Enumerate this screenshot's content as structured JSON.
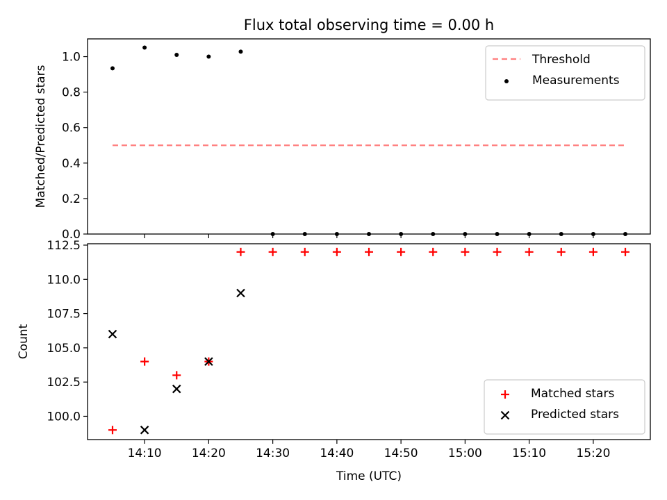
{
  "title": "Flux total observing time = 0.00 h",
  "chart_data": [
    {
      "type": "scatter",
      "ylabel": "Matched/Predicted stars",
      "ylim": [
        0,
        1.1
      ],
      "yticks": [
        "0.0",
        "0.2",
        "0.4",
        "0.6",
        "0.8",
        "1.0"
      ],
      "grid": false,
      "legend_position": "top-right",
      "threshold": {
        "name": "Threshold",
        "value": 0.5,
        "x_start": "14:05",
        "x_end": "15:25",
        "color": "#ff7f7f",
        "style": "dashed"
      },
      "series": [
        {
          "name": "Measurements",
          "marker": "dot",
          "color": "#000000",
          "x": [
            "14:05",
            "14:10",
            "14:15",
            "14:20",
            "14:25",
            "14:30",
            "14:35",
            "14:40",
            "14:45",
            "14:50",
            "14:55",
            "15:00",
            "15:05",
            "15:10",
            "15:15",
            "15:20",
            "15:25"
          ],
          "values": [
            0.934,
            1.051,
            1.01,
            1.0,
            1.028,
            0,
            0,
            0,
            0,
            0,
            0,
            0,
            0,
            0,
            0,
            0,
            0
          ]
        }
      ]
    },
    {
      "type": "scatter",
      "xlabel": "Time (UTC)",
      "ylabel": "Count",
      "ylim": [
        98.3,
        112.5
      ],
      "yticks": [
        "100.0",
        "102.5",
        "105.0",
        "107.5",
        "110.0",
        "112.5"
      ],
      "xticks": [
        "14:10",
        "14:20",
        "14:30",
        "14:40",
        "14:50",
        "15:00",
        "15:10",
        "15:20"
      ],
      "grid": false,
      "legend_position": "bottom-right",
      "series": [
        {
          "name": "Matched stars",
          "marker": "plus",
          "color": "#ff0000",
          "x": [
            "14:05",
            "14:10",
            "14:15",
            "14:20",
            "14:25",
            "14:30",
            "14:35",
            "14:40",
            "14:45",
            "14:50",
            "14:55",
            "15:00",
            "15:05",
            "15:10",
            "15:15",
            "15:20",
            "15:25"
          ],
          "values": [
            99,
            104,
            103,
            104,
            112,
            112,
            112,
            112,
            112,
            112,
            112,
            112,
            112,
            112,
            112,
            112,
            112
          ]
        },
        {
          "name": "Predicted stars",
          "marker": "x",
          "color": "#000000",
          "x": [
            "14:05",
            "14:10",
            "14:15",
            "14:20",
            "14:25"
          ],
          "values": [
            106,
            99,
            102,
            104,
            109
          ]
        }
      ]
    }
  ]
}
